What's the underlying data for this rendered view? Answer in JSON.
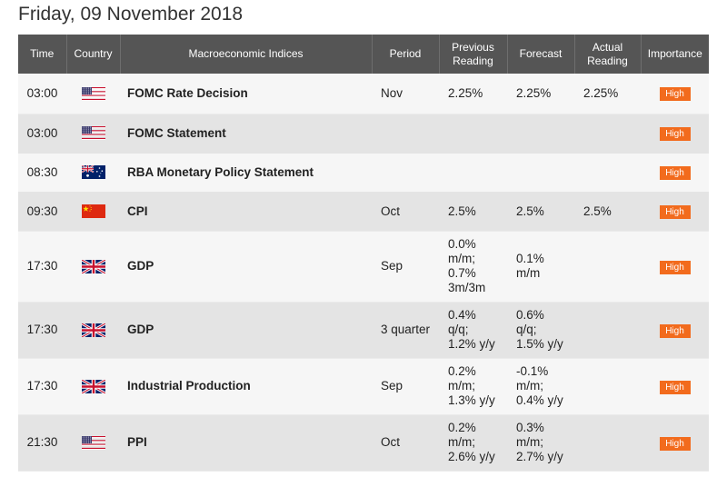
{
  "title": "Friday, 09 November 2018",
  "colors": {
    "header_bg": "#555555",
    "badge": "#f26b1d"
  },
  "headers": {
    "time": "Time",
    "country": "Country",
    "index": "Macroeconomic Indices",
    "period": "Period",
    "previous": "Previous\nReading",
    "forecast": "Forecast",
    "actual": "Actual\nReading",
    "importance": "Importance"
  },
  "rows": [
    {
      "time": "03:00",
      "flag": "us-flag-icon",
      "index": "FOMC Rate Decision",
      "period": "Nov",
      "previous": "2.25%",
      "forecast": "2.25%",
      "actual": "2.25%",
      "importance": "High"
    },
    {
      "time": "03:00",
      "flag": "us-flag-icon",
      "index": "FOMC Statement",
      "period": "",
      "previous": "",
      "forecast": "",
      "actual": "",
      "importance": "High"
    },
    {
      "time": "08:30",
      "flag": "au-flag-icon",
      "index": "RBA Monetary Policy Statement",
      "period": "",
      "previous": "",
      "forecast": "",
      "actual": "",
      "importance": "High"
    },
    {
      "time": "09:30",
      "flag": "cn-flag-icon",
      "index": "CPI",
      "period": "Oct",
      "previous": "2.5%",
      "forecast": "2.5%",
      "actual": "2.5%",
      "importance": "High"
    },
    {
      "time": "17:30",
      "flag": "uk-flag-icon",
      "index": "GDP",
      "period": "Sep",
      "previous": "0.0%\nm/m;\n0.7%\n3m/3m",
      "forecast": "0.1%\nm/m",
      "actual": "",
      "importance": "High"
    },
    {
      "time": "17:30",
      "flag": "uk-flag-icon",
      "index": "GDP",
      "period": "3 quarter",
      "previous": "0.4%\nq/q;\n1.2% y/y",
      "forecast": "0.6%\nq/q;\n1.5% y/y",
      "actual": "",
      "importance": "High"
    },
    {
      "time": "17:30",
      "flag": "uk-flag-icon",
      "index": "Industrial Production",
      "period": "Sep",
      "previous": "0.2%\nm/m;\n1.3% y/y",
      "forecast": "-0.1%\nm/m;\n0.4% y/y",
      "actual": "",
      "importance": "High"
    },
    {
      "time": "21:30",
      "flag": "us-flag-icon",
      "index": "PPI",
      "period": "Oct",
      "previous": "0.2%\nm/m;\n2.6% y/y",
      "forecast": "0.3%\nm/m;\n2.7% y/y",
      "actual": "",
      "importance": "High"
    }
  ]
}
